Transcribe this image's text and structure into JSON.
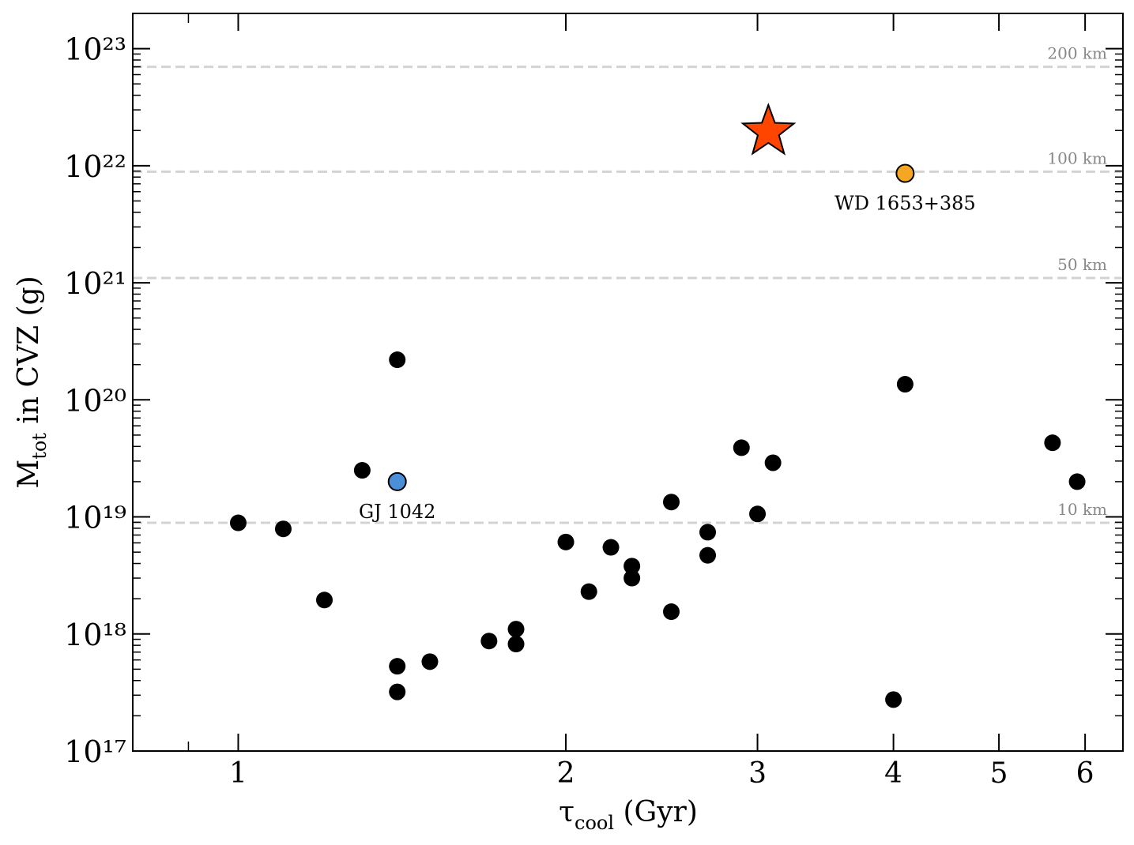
{
  "chart_data": {
    "type": "scatter",
    "x_label": {
      "symbol": "τ",
      "sub": "cool",
      "rest": " (Gyr)"
    },
    "y_label": {
      "symbol": "M",
      "sub": "tot",
      "rest": " in CVZ (g)"
    },
    "log_x": true,
    "log_y": true,
    "xlim": [
      0.8,
      6.5
    ],
    "ylim": [
      1e+17,
      2e+23
    ],
    "xticks": [
      1,
      2,
      3,
      4,
      5,
      6
    ],
    "xminorticks": [
      0.9
    ],
    "yticks": [
      {
        "value": 1e+17,
        "label": "10¹⁷"
      },
      {
        "value": 1e+18,
        "label": "10¹⁸"
      },
      {
        "value": 1e+19,
        "label": "10¹⁹"
      },
      {
        "value": 1e+20,
        "label": "10²⁰"
      },
      {
        "value": 1e+21,
        "label": "10²¹"
      },
      {
        "value": 1e+22,
        "label": "10²²"
      },
      {
        "value": 1e+23,
        "label": "10²³"
      }
    ],
    "yminorticks": [
      2e+17,
      3e+17,
      4e+17,
      5e+17,
      6e+17,
      7e+17,
      8e+17,
      9e+17,
      2e+18,
      3e+18,
      4e+18,
      5e+18,
      6e+18,
      7e+18,
      8e+18,
      9e+18,
      2e+19,
      3e+19,
      4e+19,
      5e+19,
      6e+19,
      7e+19,
      8e+19,
      9e+19,
      2e+20,
      3e+20,
      4e+20,
      5e+20,
      6e+20,
      7e+20,
      8e+20,
      9e+20,
      2e+21,
      3e+21,
      4e+21,
      5e+21,
      6e+21,
      7e+21,
      8e+21,
      9e+21,
      2e+22,
      3e+22,
      4e+22,
      5e+22,
      6e+22,
      7e+22,
      8e+22,
      9e+22
    ],
    "reference_lines": [
      {
        "value": 7e+22,
        "label": "200 km"
      },
      {
        "value": 8.9e+21,
        "label": "100 km"
      },
      {
        "value": 1.1e+21,
        "label": "50 km"
      },
      {
        "value": 8.9e+18,
        "label": "10 km"
      }
    ],
    "reference_color": "#d3d3d3",
    "series": [
      {
        "color": "#000000",
        "marker": "circle",
        "x": [
          1.0,
          1.1,
          1.2,
          1.3,
          1.4,
          1.4,
          1.4,
          1.5,
          1.7,
          1.8,
          1.8,
          2.0,
          2.1,
          2.2,
          2.3,
          2.3,
          2.5,
          2.5,
          2.7,
          2.7,
          2.9,
          3.0,
          3.1,
          4.0,
          4.1,
          5.6,
          5.9
        ],
        "values": [
          8.9e+18,
          7.9e+18,
          1.95e+18,
          2.5e+19,
          2.2e+20,
          5.3e+17,
          3.2e+17,
          5.8e+17,
          8.7e+17,
          1.1e+18,
          8.2e+17,
          6.1e+18,
          2.3e+18,
          5.5e+18,
          3.8e+18,
          3e+18,
          1.34e+19,
          1.55e+18,
          7.4e+18,
          4.7e+18,
          3.9e+19,
          1.06e+19,
          2.9e+19,
          2.75e+17,
          1.36e+20,
          4.3e+19,
          2e+19
        ]
      },
      {
        "color": "#4a90d9",
        "marker": "circle",
        "label": "GJ 1042",
        "x": [
          1.4
        ],
        "values": [
          2e+19
        ]
      },
      {
        "color": "#f5a623",
        "marker": "circle",
        "label": "WD 1653+385",
        "x": [
          4.1
        ],
        "values": [
          8.6e+21
        ]
      },
      {
        "color": "#ff4500",
        "marker": "star",
        "x": [
          3.07
        ],
        "values": [
          1.95e+22
        ]
      }
    ]
  }
}
